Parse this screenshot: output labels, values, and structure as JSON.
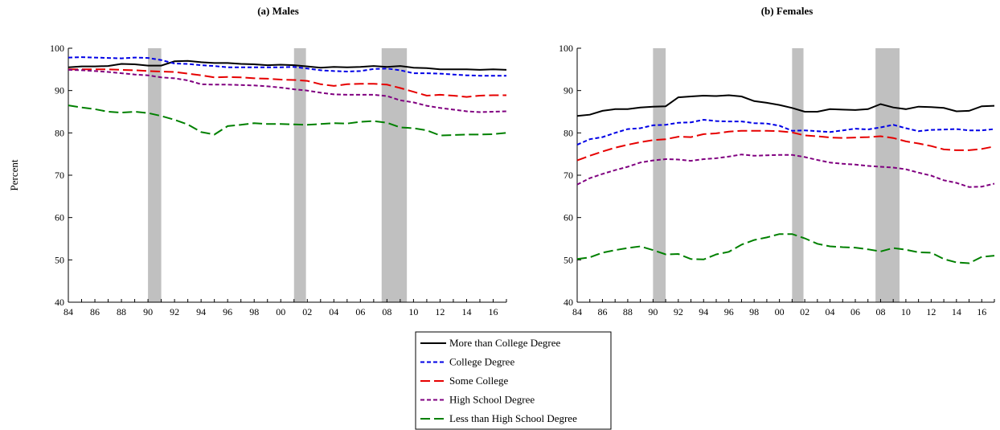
{
  "ylabel": "Percent",
  "legend": [
    {
      "name": "More than College Degree",
      "color": "#000000",
      "dash": "solid"
    },
    {
      "name": "College Degree",
      "color": "#0000e6",
      "dash": "short"
    },
    {
      "name": "Some College",
      "color": "#e60000",
      "dash": "long"
    },
    {
      "name": "High School Degree",
      "color": "#800080",
      "dash": "short"
    },
    {
      "name": "Less than High School Degree",
      "color": "#008000",
      "dash": "long"
    }
  ],
  "chart_data": [
    {
      "type": "line",
      "title": "(a) Males",
      "ylim": [
        40,
        100
      ],
      "yticks": [
        40,
        50,
        60,
        70,
        80,
        90,
        100
      ],
      "xlim": [
        1984,
        2017
      ],
      "xtick_labels": [
        "84",
        "86",
        "88",
        "90",
        "92",
        "94",
        "96",
        "98",
        "00",
        "02",
        "04",
        "06",
        "08",
        "10",
        "12",
        "14",
        "16"
      ],
      "recessions": [
        [
          1990.0,
          1991.0
        ],
        [
          2001.0,
          2001.9
        ],
        [
          2007.6,
          2009.5
        ]
      ],
      "x": [
        1984,
        1985,
        1986,
        1987,
        1988,
        1989,
        1990,
        1991,
        1992,
        1993,
        1994,
        1995,
        1996,
        1997,
        1998,
        1999,
        2000,
        2001,
        2002,
        2003,
        2004,
        2005,
        2006,
        2007,
        2008,
        2009,
        2010,
        2011,
        2012,
        2013,
        2014,
        2015,
        2016,
        2017
      ],
      "series": [
        {
          "name": "More than College Degree",
          "values": [
            95.5,
            95.7,
            95.7,
            95.8,
            96.3,
            96.2,
            95.9,
            95.9,
            96.9,
            97.0,
            96.7,
            96.5,
            96.5,
            96.3,
            96.2,
            96.0,
            96.1,
            96.0,
            95.7,
            95.4,
            95.6,
            95.5,
            95.6,
            95.8,
            95.6,
            95.8,
            95.4,
            95.3,
            95.0,
            95.0,
            95.0,
            94.9,
            95.0,
            94.9
          ]
        },
        {
          "name": "College Degree",
          "values": [
            97.8,
            97.9,
            97.8,
            97.7,
            97.6,
            97.8,
            97.7,
            97.2,
            96.4,
            96.3,
            96.0,
            95.8,
            95.5,
            95.5,
            95.5,
            95.5,
            95.5,
            95.6,
            95.2,
            94.8,
            94.6,
            94.5,
            94.6,
            95.1,
            95.2,
            94.8,
            94.1,
            94.1,
            94.0,
            93.8,
            93.6,
            93.5,
            93.5,
            93.5
          ]
        },
        {
          "name": "Some College",
          "values": [
            95.0,
            95.0,
            95.0,
            95.0,
            94.9,
            94.8,
            94.6,
            94.5,
            94.4,
            94.0,
            93.6,
            93.1,
            93.2,
            93.1,
            92.9,
            92.8,
            92.6,
            92.5,
            92.3,
            91.5,
            91.1,
            91.5,
            91.6,
            91.6,
            91.4,
            90.6,
            89.7,
            88.8,
            89.0,
            88.8,
            88.5,
            88.8,
            88.9,
            88.9
          ]
        },
        {
          "name": "High School Degree",
          "values": [
            94.9,
            94.8,
            94.6,
            94.4,
            94.1,
            93.8,
            93.6,
            93.1,
            92.9,
            92.4,
            91.5,
            91.4,
            91.4,
            91.3,
            91.2,
            91.0,
            90.7,
            90.3,
            90.0,
            89.5,
            89.1,
            89.0,
            89.0,
            89.0,
            88.7,
            87.7,
            87.2,
            86.4,
            85.9,
            85.5,
            85.1,
            84.9,
            85.0,
            85.1
          ]
        },
        {
          "name": "Less than High School Degree",
          "values": [
            86.5,
            86.0,
            85.6,
            85.0,
            84.8,
            85.0,
            84.7,
            84.0,
            83.1,
            82.0,
            80.2,
            79.6,
            81.6,
            81.9,
            82.3,
            82.1,
            82.1,
            82.0,
            81.9,
            82.1,
            82.3,
            82.2,
            82.6,
            82.8,
            82.4,
            81.3,
            81.1,
            80.6,
            79.4,
            79.5,
            79.6,
            79.6,
            79.7,
            80.0
          ]
        }
      ]
    },
    {
      "type": "line",
      "title": "(b) Females",
      "ylim": [
        40,
        100
      ],
      "yticks": [
        40,
        50,
        60,
        70,
        80,
        90,
        100
      ],
      "xlim": [
        1984,
        2017
      ],
      "xtick_labels": [
        "84",
        "86",
        "88",
        "90",
        "92",
        "94",
        "96",
        "98",
        "00",
        "02",
        "04",
        "06",
        "08",
        "10",
        "12",
        "14",
        "16"
      ],
      "recessions": [
        [
          1990.0,
          1991.0
        ],
        [
          2001.0,
          2001.9
        ],
        [
          2007.6,
          2009.5
        ]
      ],
      "x": [
        1984,
        1985,
        1986,
        1987,
        1988,
        1989,
        1990,
        1991,
        1992,
        1993,
        1994,
        1995,
        1996,
        1997,
        1998,
        1999,
        2000,
        2001,
        2002,
        2003,
        2004,
        2005,
        2006,
        2007,
        2008,
        2009,
        2010,
        2011,
        2012,
        2013,
        2014,
        2015,
        2016,
        2017
      ],
      "series": [
        {
          "name": "More than College Degree",
          "values": [
            84.0,
            84.3,
            85.2,
            85.6,
            85.6,
            86.0,
            86.2,
            86.3,
            88.4,
            88.6,
            88.8,
            88.7,
            88.9,
            88.6,
            87.5,
            87.1,
            86.6,
            85.9,
            85.0,
            85.0,
            85.6,
            85.5,
            85.4,
            85.6,
            86.8,
            86.0,
            85.6,
            86.2,
            86.1,
            85.9,
            85.1,
            85.2,
            86.3,
            86.4
          ]
        },
        {
          "name": "College Degree",
          "values": [
            77.2,
            78.5,
            79.0,
            80.0,
            80.9,
            81.1,
            81.8,
            81.9,
            82.4,
            82.5,
            83.1,
            82.8,
            82.7,
            82.7,
            82.3,
            82.2,
            81.7,
            80.5,
            80.6,
            80.4,
            80.2,
            80.6,
            81.0,
            80.8,
            81.3,
            81.9,
            81.1,
            80.4,
            80.7,
            80.8,
            80.9,
            80.6,
            80.6,
            80.9
          ]
        },
        {
          "name": "Some College",
          "values": [
            73.5,
            74.6,
            75.6,
            76.5,
            77.2,
            77.8,
            78.3,
            78.5,
            79.1,
            79.0,
            79.7,
            79.9,
            80.3,
            80.5,
            80.5,
            80.5,
            80.4,
            80.1,
            79.4,
            79.2,
            78.9,
            78.8,
            78.9,
            79.0,
            79.2,
            78.8,
            78.0,
            77.5,
            76.9,
            76.1,
            75.9,
            75.9,
            76.2,
            76.8
          ]
        },
        {
          "name": "High School Degree",
          "values": [
            67.8,
            69.3,
            70.3,
            71.2,
            72.0,
            73.0,
            73.5,
            73.8,
            73.7,
            73.4,
            73.8,
            74.0,
            74.4,
            74.9,
            74.6,
            74.7,
            74.8,
            74.8,
            74.3,
            73.6,
            73.0,
            72.7,
            72.5,
            72.2,
            72.0,
            71.8,
            71.4,
            70.6,
            69.9,
            68.8,
            68.2,
            67.2,
            67.3,
            68.0
          ]
        },
        {
          "name": "Less than High School Degree",
          "values": [
            50.2,
            50.6,
            51.7,
            52.3,
            52.8,
            53.2,
            52.3,
            51.3,
            51.4,
            50.2,
            50.1,
            51.3,
            51.9,
            53.6,
            54.7,
            55.3,
            56.1,
            56.1,
            55.1,
            53.8,
            53.2,
            53.0,
            52.9,
            52.5,
            52.0,
            52.8,
            52.4,
            51.8,
            51.7,
            50.2,
            49.4,
            49.2,
            50.7,
            51.0
          ]
        }
      ]
    }
  ]
}
